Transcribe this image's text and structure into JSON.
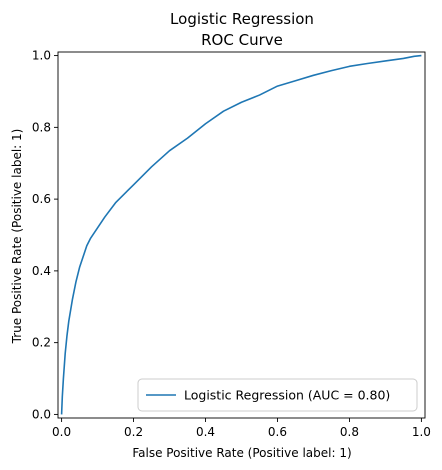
{
  "chart_data": {
    "type": "line",
    "title": "Logistic Regression\nROC Curve",
    "xlabel": "False Positive Rate (Positive label: 1)",
    "ylabel": "True Positive Rate (Positive label: 1)",
    "xlim": [
      -0.01,
      1.01
    ],
    "ylim": [
      -0.01,
      1.01
    ],
    "xticks": [
      "0.0",
      "0.2",
      "0.4",
      "0.6",
      "0.8",
      "1.0"
    ],
    "yticks": [
      "0.0",
      "0.2",
      "0.4",
      "0.6",
      "0.8",
      "1.0"
    ],
    "grid": false,
    "legend_position": "lower-right",
    "series_color": "#1f77b4",
    "series": [
      {
        "name": "Logistic Regression (AUC = 0.80)",
        "x": [
          0.0,
          0.002,
          0.005,
          0.01,
          0.015,
          0.02,
          0.03,
          0.04,
          0.05,
          0.06,
          0.07,
          0.08,
          0.1,
          0.12,
          0.15,
          0.18,
          0.2,
          0.25,
          0.3,
          0.35,
          0.4,
          0.45,
          0.5,
          0.55,
          0.6,
          0.65,
          0.7,
          0.75,
          0.8,
          0.85,
          0.9,
          0.95,
          0.98,
          1.0
        ],
        "y": [
          0.0,
          0.05,
          0.1,
          0.17,
          0.22,
          0.26,
          0.32,
          0.37,
          0.41,
          0.44,
          0.47,
          0.49,
          0.52,
          0.55,
          0.59,
          0.62,
          0.64,
          0.69,
          0.735,
          0.77,
          0.81,
          0.845,
          0.87,
          0.89,
          0.915,
          0.93,
          0.945,
          0.958,
          0.97,
          0.978,
          0.985,
          0.992,
          0.998,
          1.0
        ]
      }
    ]
  }
}
